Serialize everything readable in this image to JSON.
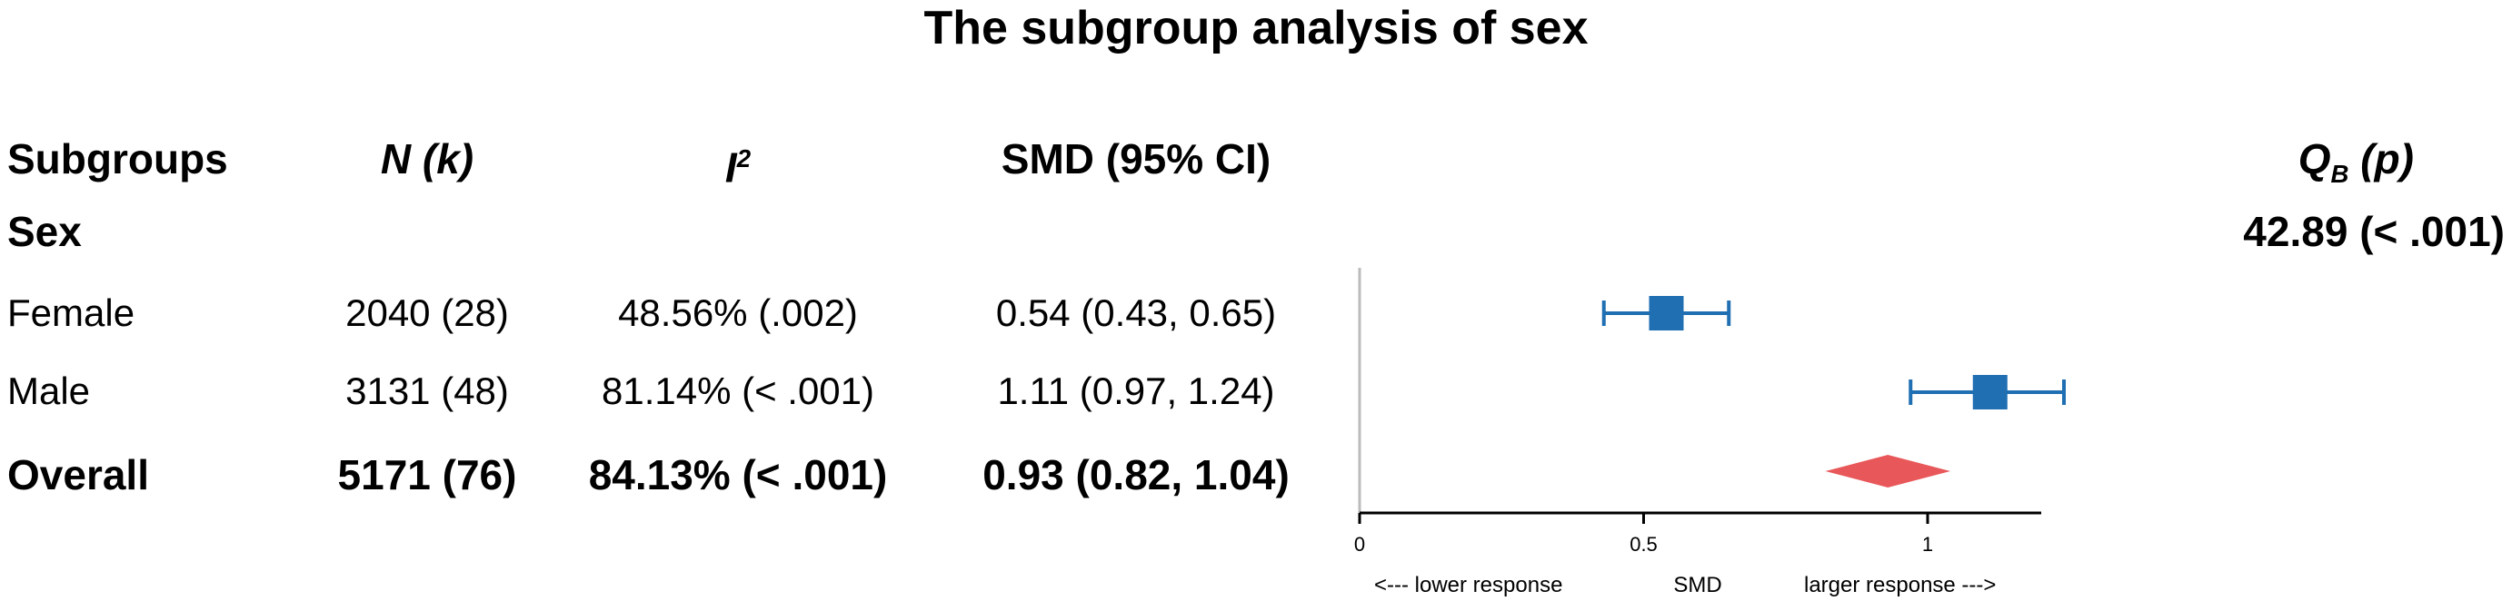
{
  "title": "The subgroup analysis of sex",
  "headers": {
    "subgroups": "Subgroups",
    "n": "N (k)",
    "i2_base": "I",
    "i2_sup": "2",
    "smd": "SMD (95% CI)",
    "qb_base": "Q",
    "qb_sub": "B",
    "qb_p": " (p)"
  },
  "group": {
    "label": "Sex",
    "qb_value": "42.89 (< .001)"
  },
  "rows": [
    {
      "label": "Female",
      "n": "2040 (28)",
      "i2": "48.56% (.002)",
      "smd": "0.54 (0.43, 0.65)"
    },
    {
      "label": "Male",
      "n": "3131 (48)",
      "i2": "81.14% (< .001)",
      "smd": "1.11 (0.97, 1.24)"
    }
  ],
  "overall": {
    "label": "Overall",
    "n": "5171 (76)",
    "i2": "84.13% (< .001)",
    "smd": "0.93 (0.82, 1.04)"
  },
  "chart_data": {
    "type": "forest",
    "xlim": [
      0,
      1.2
    ],
    "xticks": [
      0,
      0.5,
      1
    ],
    "xtick_labels": [
      "0",
      "0.5",
      "1"
    ],
    "xlabel": "SMD",
    "left_annotation": "<--- lower response",
    "right_annotation": "larger response --->",
    "studies": [
      {
        "label": "Female",
        "estimate": 0.54,
        "ci_low": 0.43,
        "ci_high": 0.65
      },
      {
        "label": "Male",
        "estimate": 1.11,
        "ci_low": 0.97,
        "ci_high": 1.24
      }
    ],
    "summary": {
      "label": "Overall",
      "estimate": 0.93,
      "ci_low": 0.82,
      "ci_high": 1.04
    },
    "colors": {
      "study": "#1f6fb2",
      "summary": "#e8585a",
      "axis": "#000000",
      "reference": "#bbbbbb"
    }
  }
}
